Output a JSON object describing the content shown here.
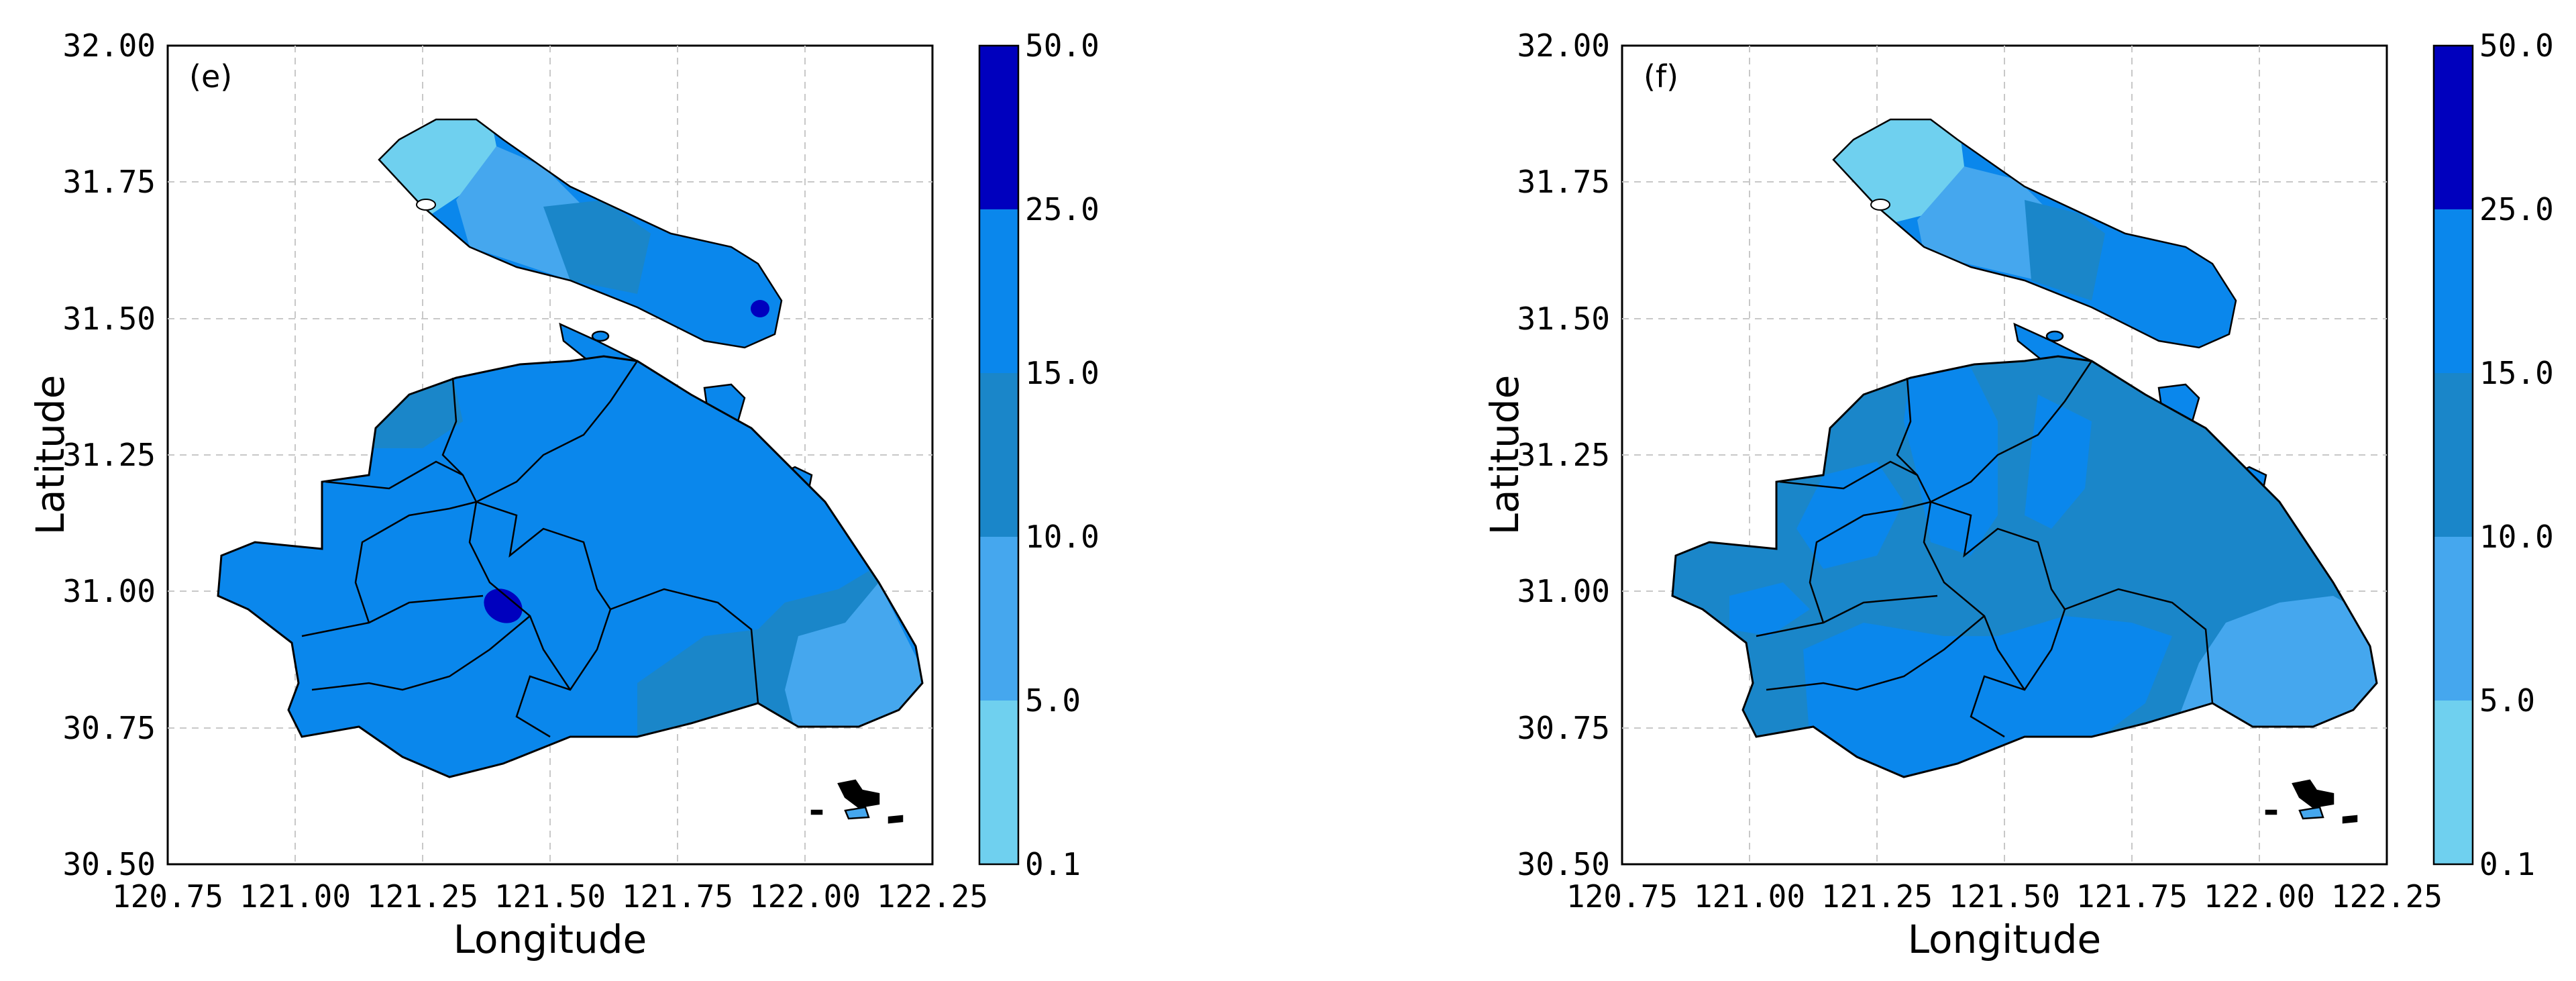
{
  "panels": [
    {
      "label": "(e)",
      "xlabel": "Longitude",
      "ylabel": "Latitude",
      "xticks": [
        "120.75",
        "121.00",
        "121.25",
        "121.50",
        "121.75",
        "122.00",
        "122.25"
      ],
      "yticks": [
        "30.50",
        "30.75",
        "31.00",
        "31.25",
        "31.50",
        "31.75",
        "32.00"
      ],
      "colorbar": [
        "0.1",
        "5.0",
        "10.0",
        "15.0",
        "25.0",
        "50.0"
      ]
    },
    {
      "label": "(f)",
      "xlabel": "Longitude",
      "ylabel": "Latitude",
      "xticks": [
        "120.75",
        "121.00",
        "121.25",
        "121.50",
        "121.75",
        "122.00",
        "122.25"
      ],
      "yticks": [
        "30.50",
        "30.75",
        "31.00",
        "31.25",
        "31.50",
        "31.75",
        "32.00"
      ],
      "colorbar": [
        "0.1",
        "5.0",
        "10.0",
        "15.0",
        "25.0",
        "50.0"
      ]
    }
  ],
  "colors": {
    "level_0_1_5": "#6fd0ef",
    "level_5_10": "#45a7ee",
    "level_10_15": "#1a86c9",
    "level_15_25": "#0a87ec",
    "level_25_50": "#0000be",
    "grid": "#c8c8c8",
    "boundary": "#000000"
  },
  "map_extent": {
    "lon": [
      120.75,
      122.25
    ],
    "lat": [
      30.5,
      32.0
    ]
  }
}
